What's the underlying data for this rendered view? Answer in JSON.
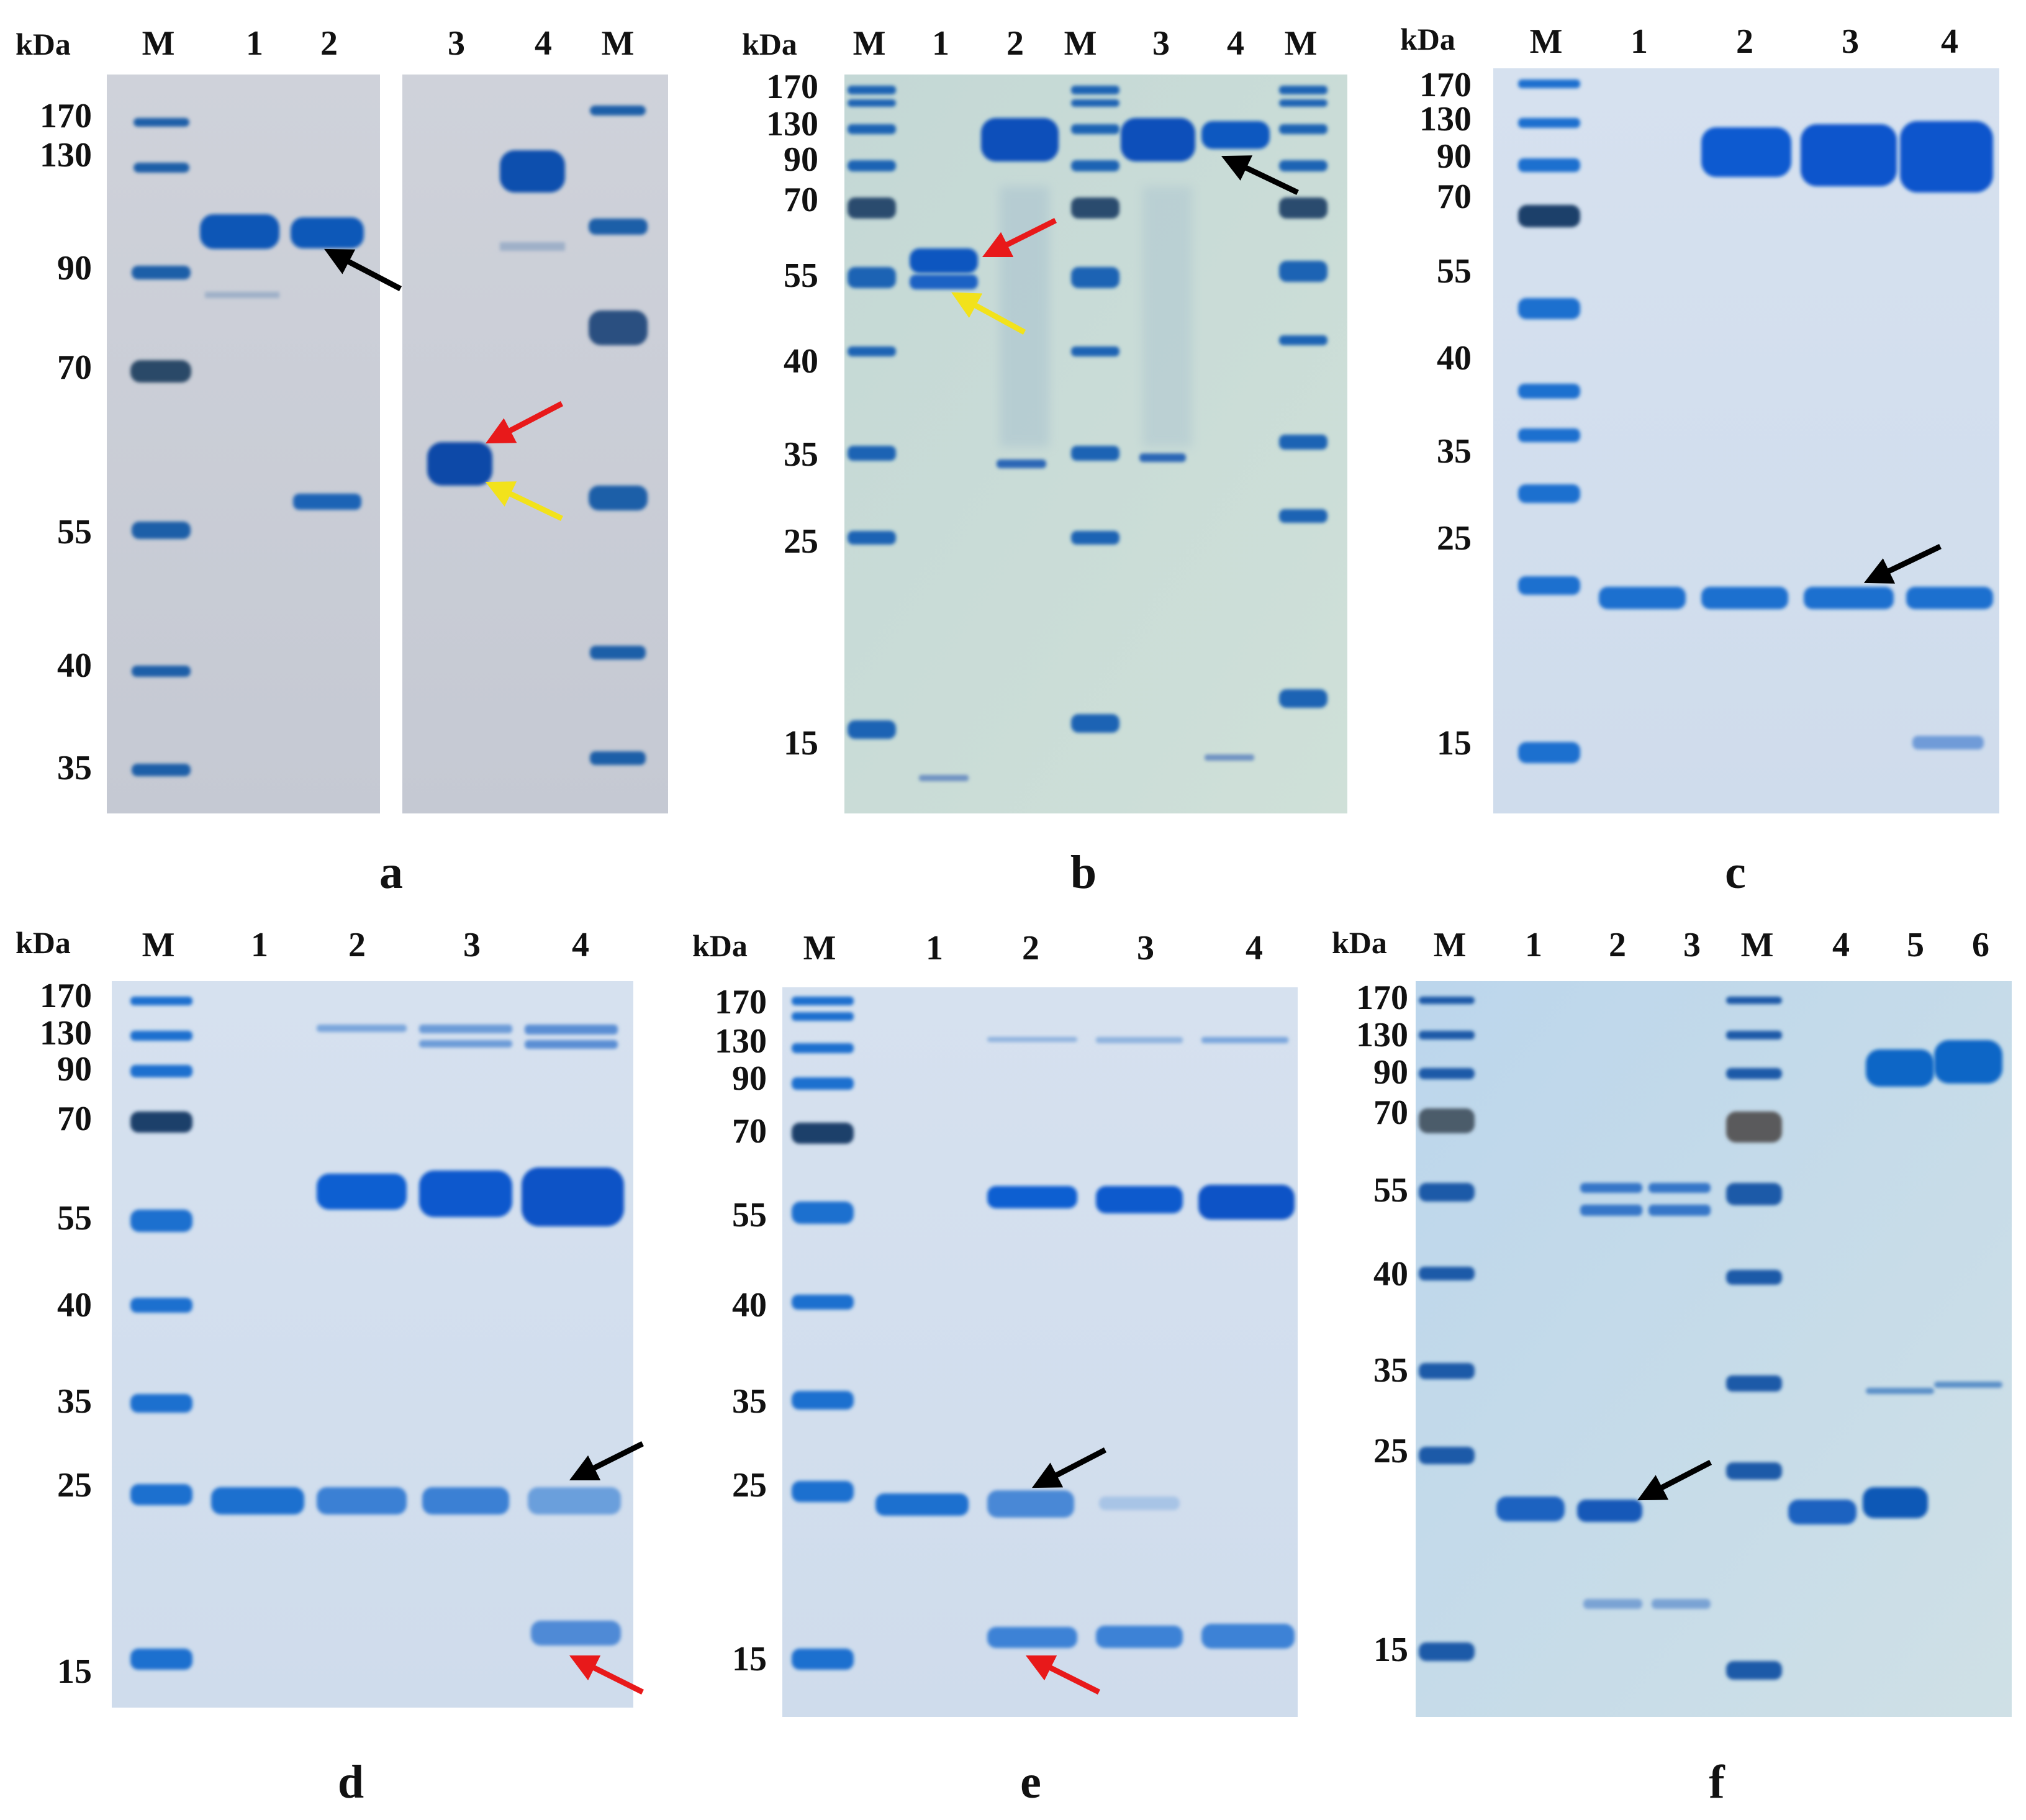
{
  "unit_label": "kDa",
  "panels": [
    {
      "id": "a",
      "caption": "a",
      "lanes": [
        "M",
        "1",
        "2",
        "3",
        "4",
        "M"
      ],
      "markers": [
        "170",
        "130",
        "90",
        "70",
        "55",
        "40",
        "35"
      ]
    },
    {
      "id": "b",
      "caption": "b",
      "lanes": [
        "M",
        "1",
        "2",
        "M",
        "3",
        "4",
        "M"
      ],
      "markers": [
        "170",
        "130",
        "90",
        "70",
        "55",
        "40",
        "35",
        "25",
        "15"
      ]
    },
    {
      "id": "c",
      "caption": "c",
      "lanes": [
        "M",
        "1",
        "2",
        "3",
        "4"
      ],
      "markers": [
        "170",
        "130",
        "90",
        "70",
        "55",
        "40",
        "35",
        "25",
        "15"
      ]
    },
    {
      "id": "d",
      "caption": "d",
      "lanes": [
        "M",
        "1",
        "2",
        "3",
        "4"
      ],
      "markers": [
        "170",
        "130",
        "90",
        "70",
        "55",
        "40",
        "35",
        "25",
        "15"
      ]
    },
    {
      "id": "e",
      "caption": "e",
      "lanes": [
        "M",
        "1",
        "2",
        "3",
        "4"
      ],
      "markers": [
        "170",
        "130",
        "90",
        "70",
        "55",
        "40",
        "35",
        "25",
        "15"
      ]
    },
    {
      "id": "f",
      "caption": "f",
      "lanes": [
        "M",
        "1",
        "2",
        "3",
        "M",
        "4",
        "5",
        "6"
      ],
      "markers": [
        "170",
        "130",
        "90",
        "70",
        "55",
        "40",
        "35",
        "25",
        "15"
      ]
    }
  ],
  "colors": {
    "band": "#1a5fc4",
    "band_strong": "#0b4aaa",
    "marker_dark": "#23466e",
    "arrow_black": "#000000",
    "arrow_red": "#e8191a",
    "arrow_yellow": "#f2e21b",
    "gel_grey": "#c9cdd6",
    "gel_green": "#c9ddd8",
    "gel_blue": "#d4e0ee"
  }
}
